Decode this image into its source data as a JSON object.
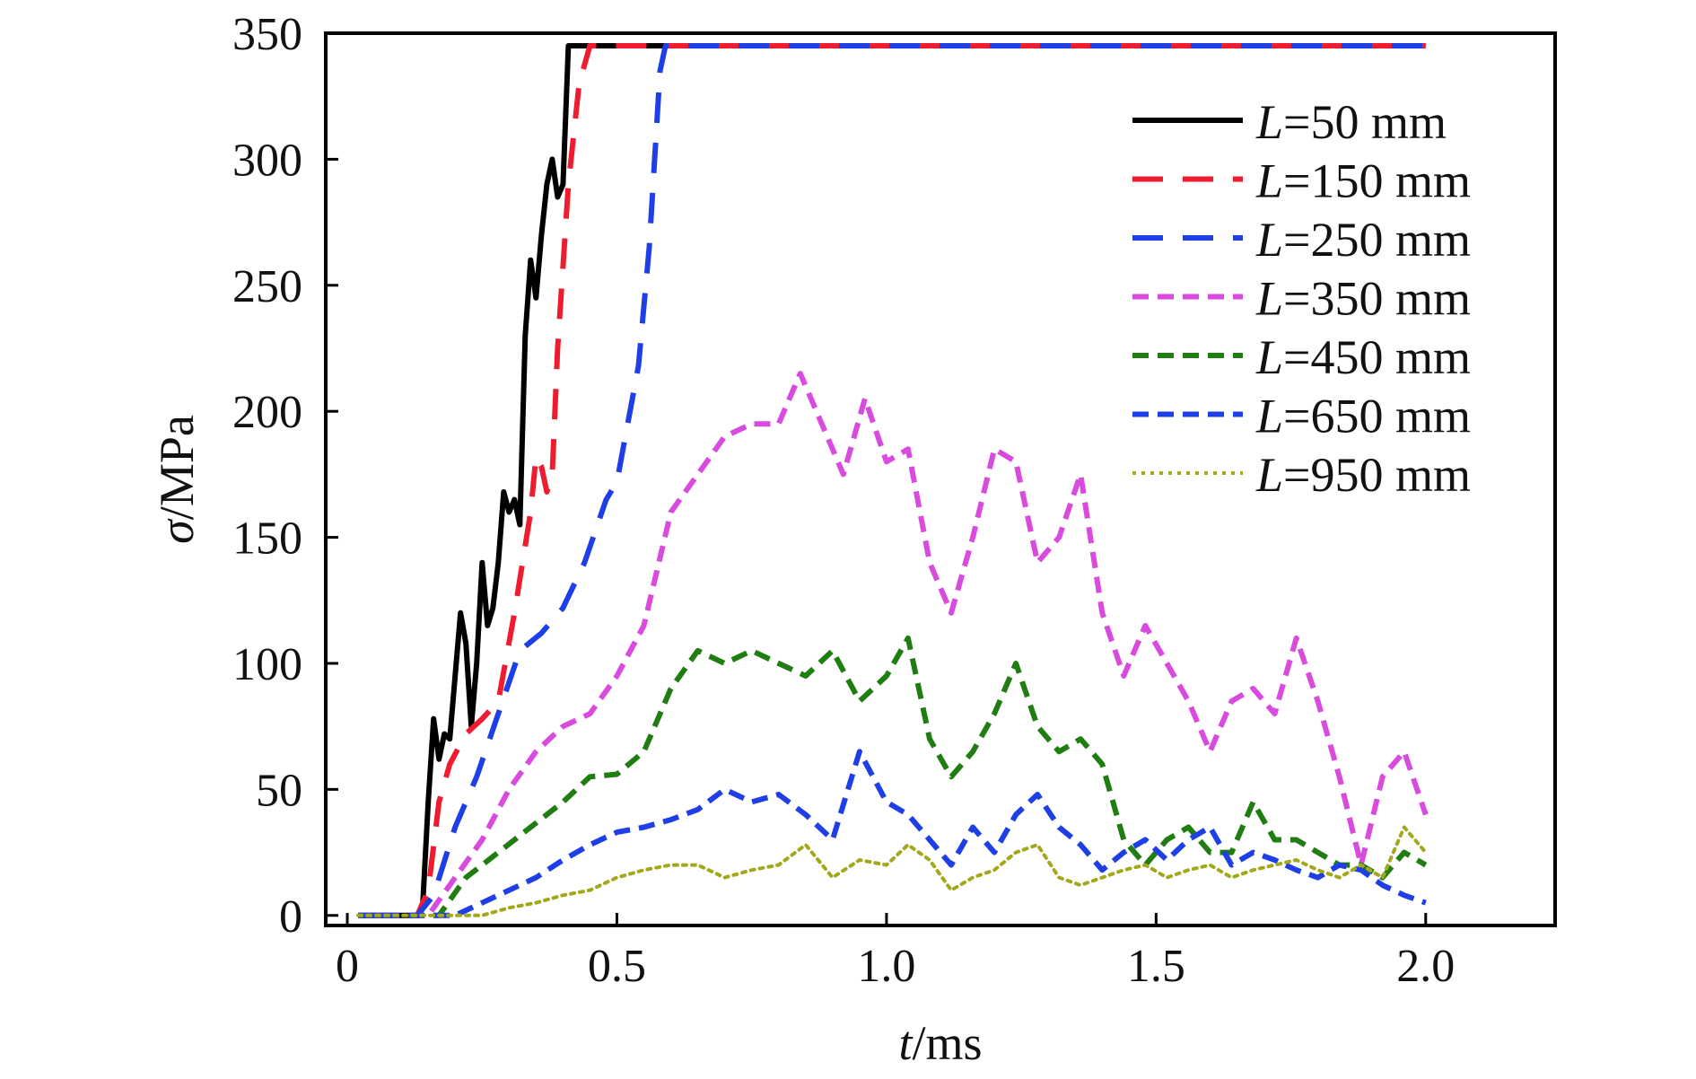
{
  "chart_data": {
    "type": "line",
    "xlabel": {
      "var": "t",
      "unit": "/ms"
    },
    "ylabel": {
      "var": "σ",
      "unit": "/MPa"
    },
    "xlim": [
      -0.04,
      2.24
    ],
    "ylim": [
      -4,
      350
    ],
    "xticks": [
      {
        "value": 0,
        "label": "0"
      },
      {
        "value": 0.5,
        "label": "0.5"
      },
      {
        "value": 1.0,
        "label": "1.0"
      },
      {
        "value": 1.5,
        "label": "1.5"
      },
      {
        "value": 2.0,
        "label": "2.0"
      }
    ],
    "yticks": [
      {
        "value": 0,
        "label": "0"
      },
      {
        "value": 50,
        "label": "50"
      },
      {
        "value": 100,
        "label": "100"
      },
      {
        "value": 150,
        "label": "150"
      },
      {
        "value": 200,
        "label": "200"
      },
      {
        "value": 250,
        "label": "250"
      },
      {
        "value": 300,
        "label": "300"
      },
      {
        "value": 350,
        "label": "350"
      }
    ],
    "grid": false,
    "legend_position": "top-right",
    "series": [
      {
        "name": "L=50 mm",
        "name_var": "L",
        "name_rest": "=50 mm",
        "color": "#000000",
        "style": "solid",
        "points": [
          [
            0.02,
            0
          ],
          [
            0.13,
            0
          ],
          [
            0.14,
            5
          ],
          [
            0.15,
            45
          ],
          [
            0.16,
            78
          ],
          [
            0.17,
            62
          ],
          [
            0.18,
            72
          ],
          [
            0.19,
            70
          ],
          [
            0.2,
            95
          ],
          [
            0.21,
            120
          ],
          [
            0.22,
            108
          ],
          [
            0.23,
            75
          ],
          [
            0.24,
            100
          ],
          [
            0.25,
            140
          ],
          [
            0.26,
            115
          ],
          [
            0.27,
            122
          ],
          [
            0.28,
            140
          ],
          [
            0.29,
            168
          ],
          [
            0.3,
            160
          ],
          [
            0.31,
            165
          ],
          [
            0.32,
            155
          ],
          [
            0.33,
            230
          ],
          [
            0.34,
            260
          ],
          [
            0.35,
            245
          ],
          [
            0.36,
            270
          ],
          [
            0.37,
            290
          ],
          [
            0.38,
            300
          ],
          [
            0.39,
            285
          ],
          [
            0.4,
            290
          ],
          [
            0.41,
            345
          ],
          [
            0.5,
            345
          ],
          [
            0.62,
            345
          ]
        ]
      },
      {
        "name": "L=150 mm",
        "name_var": "L",
        "name_rest": "=150 mm",
        "color": "#ee1c2e",
        "style": "longdash",
        "points": [
          [
            0.02,
            0
          ],
          [
            0.13,
            0
          ],
          [
            0.15,
            10
          ],
          [
            0.17,
            45
          ],
          [
            0.19,
            60
          ],
          [
            0.22,
            72
          ],
          [
            0.25,
            78
          ],
          [
            0.28,
            85
          ],
          [
            0.31,
            120
          ],
          [
            0.34,
            160
          ],
          [
            0.35,
            182
          ],
          [
            0.36,
            178
          ],
          [
            0.37,
            168
          ],
          [
            0.38,
            175
          ],
          [
            0.39,
            225
          ],
          [
            0.41,
            290
          ],
          [
            0.43,
            330
          ],
          [
            0.45,
            345
          ],
          [
            0.6,
            345
          ],
          [
            1.2,
            345
          ],
          [
            2.0,
            345
          ]
        ]
      },
      {
        "name": "L=250 mm",
        "name_var": "L",
        "name_rest": "=250 mm",
        "color": "#1f3fe6",
        "style": "longdash",
        "points": [
          [
            0.02,
            0
          ],
          [
            0.13,
            0
          ],
          [
            0.16,
            8
          ],
          [
            0.2,
            35
          ],
          [
            0.24,
            55
          ],
          [
            0.28,
            80
          ],
          [
            0.32,
            105
          ],
          [
            0.36,
            112
          ],
          [
            0.4,
            122
          ],
          [
            0.44,
            140
          ],
          [
            0.48,
            165
          ],
          [
            0.5,
            172
          ],
          [
            0.52,
            195
          ],
          [
            0.54,
            218
          ],
          [
            0.56,
            265
          ],
          [
            0.58,
            335
          ],
          [
            0.59,
            345
          ],
          [
            0.7,
            345
          ],
          [
            1.2,
            345
          ],
          [
            2.0,
            345
          ]
        ]
      },
      {
        "name": "L=350 mm",
        "name_var": "L",
        "name_rest": "=350 mm",
        "color": "#d94adf",
        "style": "shortdash",
        "points": [
          [
            0.02,
            0
          ],
          [
            0.15,
            0
          ],
          [
            0.2,
            15
          ],
          [
            0.25,
            30
          ],
          [
            0.3,
            50
          ],
          [
            0.35,
            65
          ],
          [
            0.4,
            75
          ],
          [
            0.45,
            80
          ],
          [
            0.5,
            95
          ],
          [
            0.55,
            115
          ],
          [
            0.6,
            160
          ],
          [
            0.65,
            175
          ],
          [
            0.7,
            190
          ],
          [
            0.75,
            195
          ],
          [
            0.8,
            195
          ],
          [
            0.84,
            215
          ],
          [
            0.88,
            195
          ],
          [
            0.92,
            175
          ],
          [
            0.96,
            205
          ],
          [
            1.0,
            180
          ],
          [
            1.04,
            185
          ],
          [
            1.08,
            140
          ],
          [
            1.12,
            120
          ],
          [
            1.16,
            150
          ],
          [
            1.2,
            185
          ],
          [
            1.24,
            180
          ],
          [
            1.28,
            140
          ],
          [
            1.32,
            150
          ],
          [
            1.36,
            175
          ],
          [
            1.4,
            120
          ],
          [
            1.44,
            95
          ],
          [
            1.48,
            115
          ],
          [
            1.52,
            100
          ],
          [
            1.56,
            85
          ],
          [
            1.6,
            65
          ],
          [
            1.64,
            85
          ],
          [
            1.68,
            90
          ],
          [
            1.72,
            80
          ],
          [
            1.76,
            110
          ],
          [
            1.8,
            85
          ],
          [
            1.84,
            55
          ],
          [
            1.88,
            20
          ],
          [
            1.92,
            55
          ],
          [
            1.96,
            65
          ],
          [
            2.0,
            40
          ]
        ]
      },
      {
        "name": "L=450 mm",
        "name_var": "L",
        "name_rest": "=450 mm",
        "color": "#1f7d11",
        "style": "shortdash",
        "points": [
          [
            0.02,
            0
          ],
          [
            0.17,
            0
          ],
          [
            0.22,
            15
          ],
          [
            0.28,
            25
          ],
          [
            0.34,
            35
          ],
          [
            0.4,
            45
          ],
          [
            0.45,
            55
          ],
          [
            0.5,
            56
          ],
          [
            0.55,
            65
          ],
          [
            0.6,
            90
          ],
          [
            0.65,
            105
          ],
          [
            0.7,
            100
          ],
          [
            0.75,
            105
          ],
          [
            0.8,
            100
          ],
          [
            0.85,
            95
          ],
          [
            0.9,
            105
          ],
          [
            0.95,
            85
          ],
          [
            1.0,
            95
          ],
          [
            1.04,
            110
          ],
          [
            1.08,
            70
          ],
          [
            1.12,
            55
          ],
          [
            1.16,
            65
          ],
          [
            1.2,
            80
          ],
          [
            1.24,
            100
          ],
          [
            1.28,
            75
          ],
          [
            1.32,
            65
          ],
          [
            1.36,
            70
          ],
          [
            1.4,
            60
          ],
          [
            1.44,
            30
          ],
          [
            1.48,
            20
          ],
          [
            1.52,
            30
          ],
          [
            1.56,
            35
          ],
          [
            1.6,
            25
          ],
          [
            1.64,
            25
          ],
          [
            1.68,
            45
          ],
          [
            1.72,
            30
          ],
          [
            1.76,
            30
          ],
          [
            1.8,
            25
          ],
          [
            1.84,
            20
          ],
          [
            1.88,
            20
          ],
          [
            1.92,
            15
          ],
          [
            1.96,
            25
          ],
          [
            2.0,
            20
          ]
        ]
      },
      {
        "name": "L=650 mm",
        "name_var": "L",
        "name_rest": "=650 mm",
        "color": "#1f3fe6",
        "style": "shortdash",
        "points": [
          [
            0.02,
            0
          ],
          [
            0.2,
            0
          ],
          [
            0.25,
            5
          ],
          [
            0.3,
            10
          ],
          [
            0.35,
            15
          ],
          [
            0.4,
            22
          ],
          [
            0.45,
            28
          ],
          [
            0.5,
            33
          ],
          [
            0.55,
            35
          ],
          [
            0.6,
            38
          ],
          [
            0.65,
            42
          ],
          [
            0.7,
            50
          ],
          [
            0.75,
            45
          ],
          [
            0.8,
            48
          ],
          [
            0.85,
            40
          ],
          [
            0.9,
            30
          ],
          [
            0.95,
            65
          ],
          [
            1.0,
            45
          ],
          [
            1.04,
            40
          ],
          [
            1.08,
            30
          ],
          [
            1.12,
            20
          ],
          [
            1.16,
            35
          ],
          [
            1.2,
            25
          ],
          [
            1.24,
            40
          ],
          [
            1.28,
            48
          ],
          [
            1.32,
            35
          ],
          [
            1.36,
            28
          ],
          [
            1.4,
            18
          ],
          [
            1.44,
            25
          ],
          [
            1.48,
            30
          ],
          [
            1.52,
            22
          ],
          [
            1.56,
            30
          ],
          [
            1.6,
            35
          ],
          [
            1.64,
            20
          ],
          [
            1.68,
            25
          ],
          [
            1.72,
            22
          ],
          [
            1.76,
            18
          ],
          [
            1.8,
            15
          ],
          [
            1.84,
            20
          ],
          [
            1.88,
            18
          ],
          [
            1.92,
            12
          ],
          [
            1.96,
            8
          ],
          [
            2.0,
            5
          ]
        ]
      },
      {
        "name": "L=950 mm",
        "name_var": "L",
        "name_rest": "=950 mm",
        "color": "#a3a81a",
        "style": "dotted",
        "points": [
          [
            0.02,
            0
          ],
          [
            0.25,
            0
          ],
          [
            0.3,
            3
          ],
          [
            0.35,
            5
          ],
          [
            0.4,
            8
          ],
          [
            0.45,
            10
          ],
          [
            0.5,
            15
          ],
          [
            0.55,
            18
          ],
          [
            0.6,
            20
          ],
          [
            0.65,
            20
          ],
          [
            0.7,
            15
          ],
          [
            0.75,
            18
          ],
          [
            0.8,
            20
          ],
          [
            0.85,
            28
          ],
          [
            0.9,
            15
          ],
          [
            0.95,
            22
          ],
          [
            1.0,
            20
          ],
          [
            1.04,
            28
          ],
          [
            1.08,
            22
          ],
          [
            1.12,
            10
          ],
          [
            1.16,
            15
          ],
          [
            1.2,
            18
          ],
          [
            1.24,
            25
          ],
          [
            1.28,
            28
          ],
          [
            1.32,
            15
          ],
          [
            1.36,
            12
          ],
          [
            1.4,
            15
          ],
          [
            1.44,
            18
          ],
          [
            1.48,
            20
          ],
          [
            1.52,
            15
          ],
          [
            1.56,
            18
          ],
          [
            1.6,
            20
          ],
          [
            1.64,
            15
          ],
          [
            1.68,
            18
          ],
          [
            1.72,
            20
          ],
          [
            1.76,
            22
          ],
          [
            1.8,
            18
          ],
          [
            1.84,
            15
          ],
          [
            1.88,
            20
          ],
          [
            1.92,
            15
          ],
          [
            1.96,
            35
          ],
          [
            2.0,
            25
          ]
        ]
      }
    ]
  }
}
